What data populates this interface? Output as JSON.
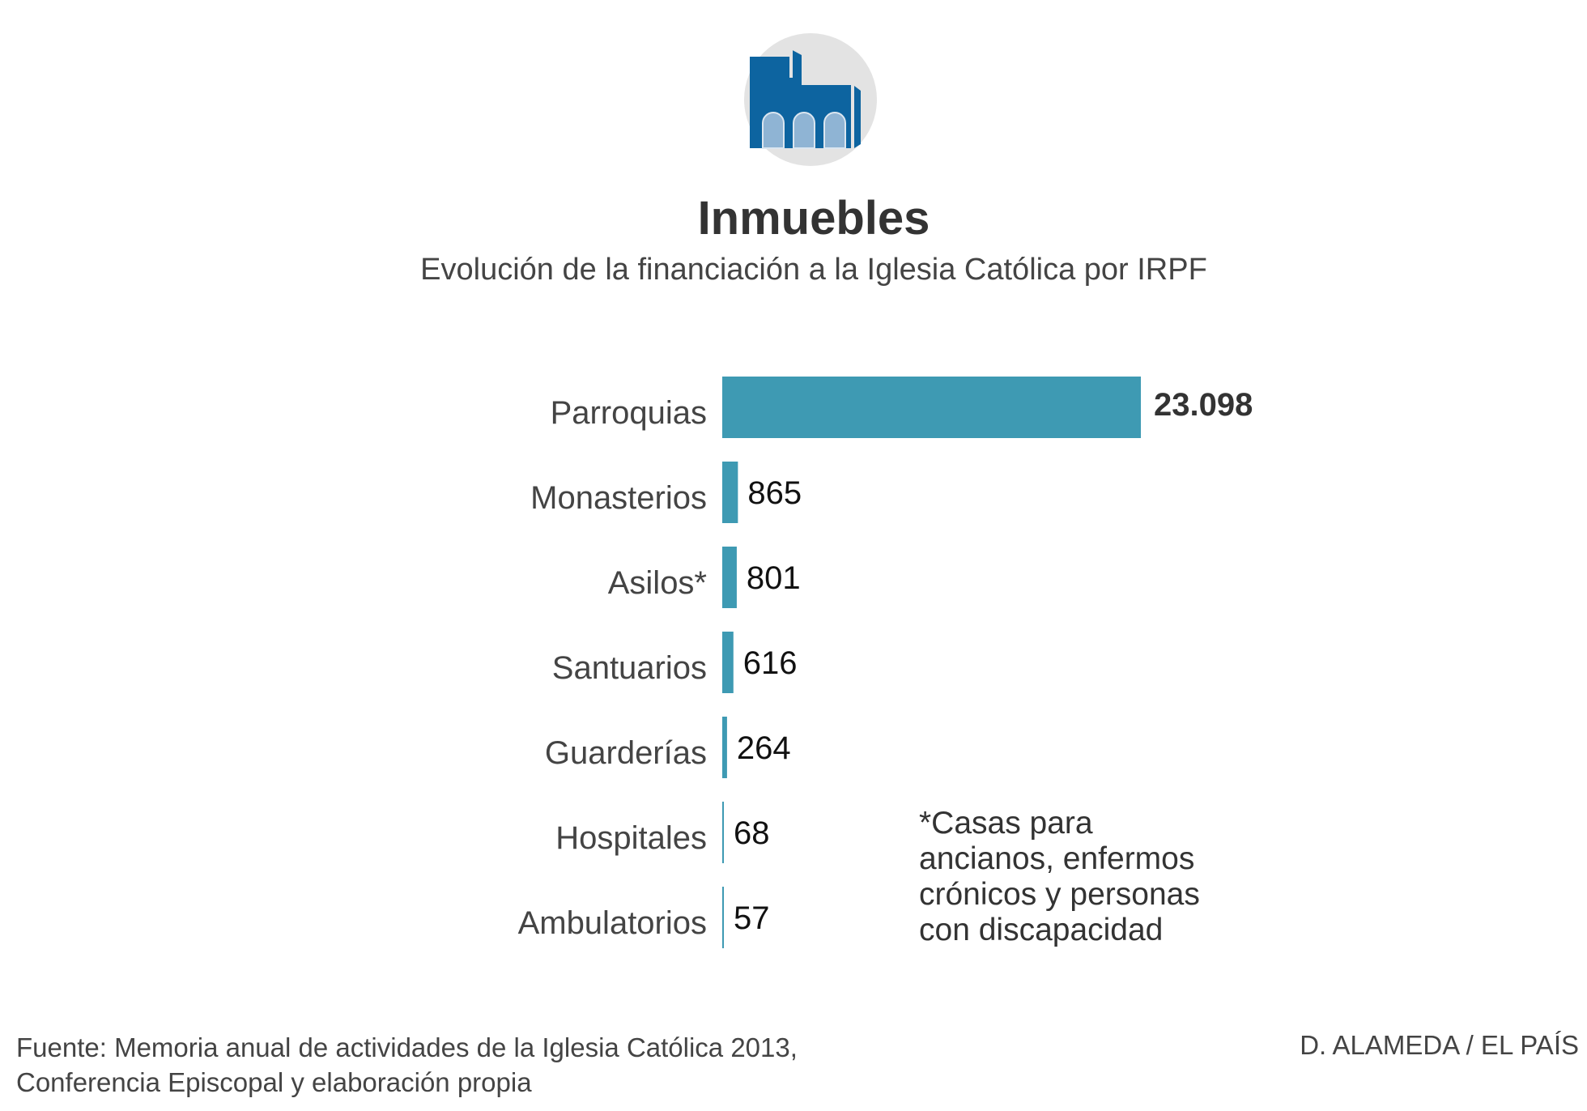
{
  "title": "Inmuebles",
  "subtitle": "Evolución de la financiación a la Iglesia Católica por IRPF",
  "icon": "church-icon",
  "colors": {
    "bar": "#3e9ab3",
    "icon_blue": "#0d64a0",
    "icon_light": "#8fb4d4",
    "icon_bg": "#e3e3e3"
  },
  "chart_data": {
    "type": "bar",
    "orientation": "horizontal",
    "categories": [
      "Parroquias",
      "Monasterios",
      "Asilos*",
      "Santuarios",
      "Guarderías",
      "Hospitales",
      "Ambulatorios"
    ],
    "values": [
      23098,
      865,
      801,
      616,
      264,
      68,
      57
    ],
    "value_labels": [
      "23.098",
      "865",
      "801",
      "616",
      "264",
      "68",
      "57"
    ],
    "title": "Inmuebles",
    "subtitle": "Evolución de la financiación a la Iglesia Católica por IRPF",
    "grid": false
  },
  "footnote": "*Casas para\nancianos, enfermos\ncrónicos y personas\ncon discapacidad",
  "source": [
    "Fuente: Memoria anual de actividades de la Iglesia Católica 2013,",
    "Conferencia Episcopal y elaboración propia"
  ],
  "credit": "D. ALAMEDA / EL PAÍS"
}
